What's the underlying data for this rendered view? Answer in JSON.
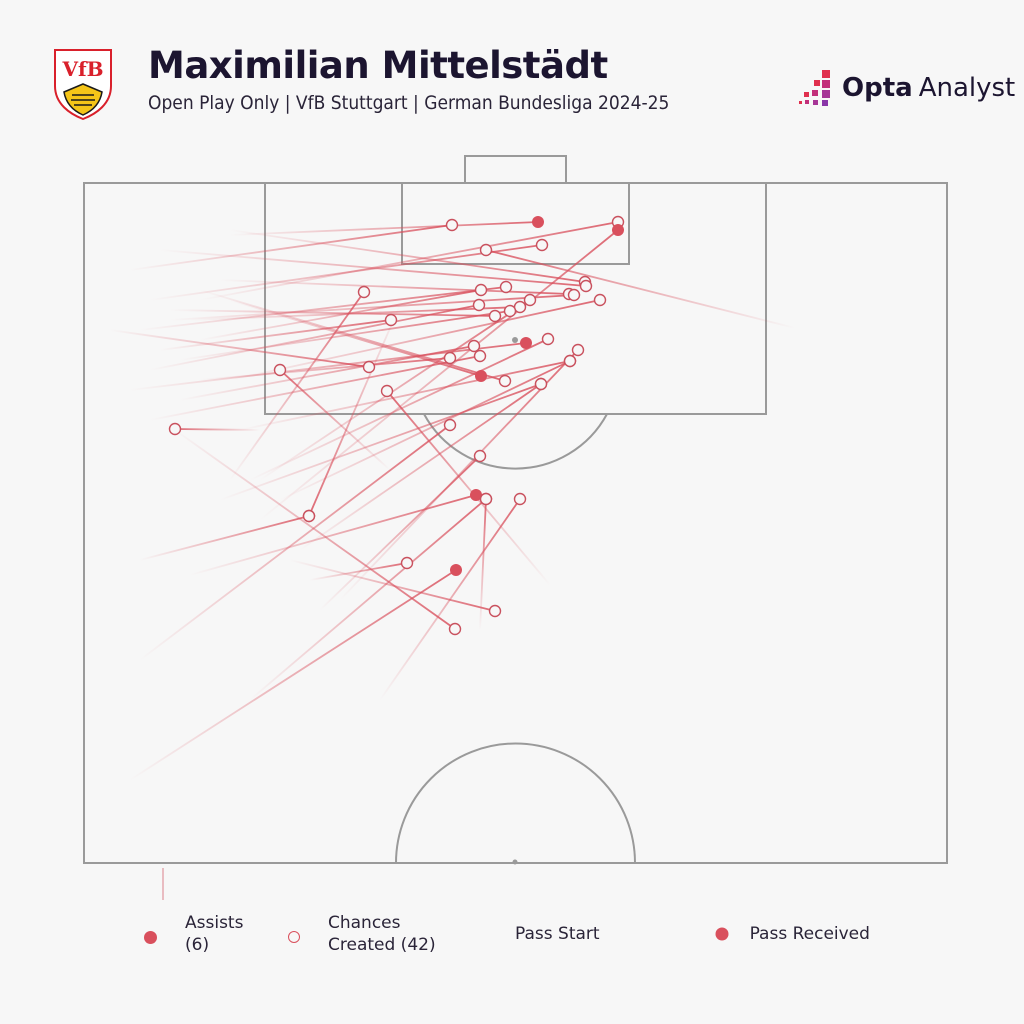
{
  "header": {
    "title": "Maximilian Mittelstädt",
    "subtitle": "Open Play Only | VfB Stuttgart | German Bundesliga 2024-25",
    "club_crest": "vfb-stuttgart-crest",
    "brand": {
      "opta": "Opta",
      "analyst": "Analyst",
      "icon": "opta-pixel-bars-icon"
    }
  },
  "legend": {
    "assists_label": "Assists",
    "assists_count": "(6)",
    "chances_label": "Chances",
    "chances_label2": "Created (42)",
    "pass_start": "Pass Start",
    "pass_received": "Pass Received"
  },
  "colors": {
    "accent": "#d9505d",
    "pitch_line": "#9a9a9a",
    "background": "#f7f7f7",
    "title": "#1c1530"
  },
  "chart_data": {
    "type": "scatter",
    "title": "Maximilian Mittelstädt",
    "subtitle": "Open Play Only | VfB Stuttgart | German Bundesliga 2024-25",
    "xlabel": "",
    "ylabel": "",
    "grid": false,
    "legend_position": "bottom",
    "series": [
      {
        "name": "Assists",
        "count": 6
      },
      {
        "name": "Chances Created",
        "count": 42
      }
    ],
    "note": "Pass lines in pixel coordinates: start (sx,sy) fading to received point (ex,ey); type a=assist, c=chance",
    "passes": [
      {
        "sx": 230,
        "sy": 235,
        "ex": 538,
        "ey": 222,
        "t": "a"
      },
      {
        "sx": 130,
        "sy": 270,
        "ex": 452,
        "ey": 225,
        "t": "c"
      },
      {
        "sx": 200,
        "sy": 300,
        "ex": 618,
        "ey": 222,
        "t": "c"
      },
      {
        "sx": 260,
        "sy": 520,
        "ex": 618,
        "ey": 230,
        "t": "a"
      },
      {
        "sx": 150,
        "sy": 300,
        "ex": 542,
        "ey": 245,
        "t": "c"
      },
      {
        "sx": 795,
        "sy": 328,
        "ex": 486,
        "ey": 250,
        "t": "c"
      },
      {
        "sx": 230,
        "sy": 230,
        "ex": 585,
        "ey": 282,
        "t": "c"
      },
      {
        "sx": 160,
        "sy": 250,
        "ex": 586,
        "ey": 286,
        "t": "c"
      },
      {
        "sx": 220,
        "sy": 280,
        "ex": 569,
        "ey": 294,
        "t": "c"
      },
      {
        "sx": 170,
        "sy": 320,
        "ex": 574,
        "ey": 295,
        "t": "c"
      },
      {
        "sx": 140,
        "sy": 330,
        "ex": 506,
        "ey": 287,
        "t": "c"
      },
      {
        "sx": 200,
        "sy": 340,
        "ex": 481,
        "ey": 290,
        "t": "c"
      },
      {
        "sx": 230,
        "sy": 480,
        "ex": 364,
        "ey": 292,
        "t": "c"
      },
      {
        "sx": 150,
        "sy": 370,
        "ex": 479,
        "ey": 305,
        "t": "c"
      },
      {
        "sx": 190,
        "sy": 320,
        "ex": 520,
        "ey": 307,
        "t": "c"
      },
      {
        "sx": 170,
        "sy": 310,
        "ex": 495,
        "ey": 316,
        "t": "c"
      },
      {
        "sx": 160,
        "sy": 350,
        "ex": 391,
        "ey": 320,
        "t": "c"
      },
      {
        "sx": 180,
        "sy": 360,
        "ex": 510,
        "ey": 311,
        "t": "c"
      },
      {
        "sx": 130,
        "sy": 390,
        "ex": 526,
        "ey": 343,
        "t": "a"
      },
      {
        "sx": 250,
        "sy": 480,
        "ex": 548,
        "ey": 339,
        "t": "c"
      },
      {
        "sx": 180,
        "sy": 400,
        "ex": 474,
        "ey": 346,
        "t": "c"
      },
      {
        "sx": 200,
        "sy": 380,
        "ex": 450,
        "ey": 358,
        "t": "c"
      },
      {
        "sx": 150,
        "sy": 420,
        "ex": 480,
        "ey": 356,
        "t": "c"
      },
      {
        "sx": 110,
        "sy": 330,
        "ex": 369,
        "ey": 367,
        "t": "c"
      },
      {
        "sx": 280,
        "sy": 500,
        "ex": 570,
        "ey": 361,
        "t": "c"
      },
      {
        "sx": 230,
        "sy": 300,
        "ex": 481,
        "ey": 376,
        "t": "a"
      },
      {
        "sx": 200,
        "sy": 290,
        "ex": 505,
        "ey": 381,
        "t": "c"
      },
      {
        "sx": 300,
        "sy": 550,
        "ex": 541,
        "ey": 384,
        "t": "c"
      },
      {
        "sx": 390,
        "sy": 470,
        "ex": 280,
        "ey": 370,
        "t": "c"
      },
      {
        "sx": 550,
        "sy": 585,
        "ex": 387,
        "ey": 391,
        "t": "c"
      },
      {
        "sx": 260,
        "sy": 430,
        "ex": 175,
        "ey": 429,
        "t": "c"
      },
      {
        "sx": 320,
        "sy": 610,
        "ex": 480,
        "ey": 456,
        "t": "c"
      },
      {
        "sx": 190,
        "sy": 575,
        "ex": 476,
        "ey": 495,
        "t": "a"
      },
      {
        "sx": 480,
        "sy": 630,
        "ex": 486,
        "ey": 499,
        "t": "c"
      },
      {
        "sx": 380,
        "sy": 700,
        "ex": 520,
        "ey": 499,
        "t": "c"
      },
      {
        "sx": 140,
        "sy": 560,
        "ex": 309,
        "ey": 516,
        "t": "c"
      },
      {
        "sx": 400,
        "sy": 305,
        "ex": 309,
        "ey": 516,
        "t": "c"
      },
      {
        "sx": 310,
        "sy": 580,
        "ex": 407,
        "ey": 563,
        "t": "c"
      },
      {
        "sx": 130,
        "sy": 780,
        "ex": 456,
        "ey": 570,
        "t": "a"
      },
      {
        "sx": 175,
        "sy": 430,
        "ex": 455,
        "ey": 629,
        "t": "c"
      },
      {
        "sx": 290,
        "sy": 560,
        "ex": 495,
        "ey": 611,
        "t": "c"
      },
      {
        "sx": 250,
        "sy": 700,
        "ex": 486,
        "ey": 499,
        "t": "c"
      },
      {
        "sx": 140,
        "sy": 660,
        "ex": 450,
        "ey": 425,
        "t": "c"
      },
      {
        "sx": 240,
        "sy": 430,
        "ex": 570,
        "ey": 361,
        "t": "c"
      },
      {
        "sx": 220,
        "sy": 500,
        "ex": 541,
        "ey": 384,
        "t": "c"
      },
      {
        "sx": 340,
        "sy": 600,
        "ex": 578,
        "ey": 350,
        "t": "c"
      },
      {
        "sx": 260,
        "sy": 480,
        "ex": 530,
        "ey": 300,
        "t": "c"
      },
      {
        "sx": 230,
        "sy": 380,
        "ex": 600,
        "ey": 300,
        "t": "c"
      }
    ]
  }
}
